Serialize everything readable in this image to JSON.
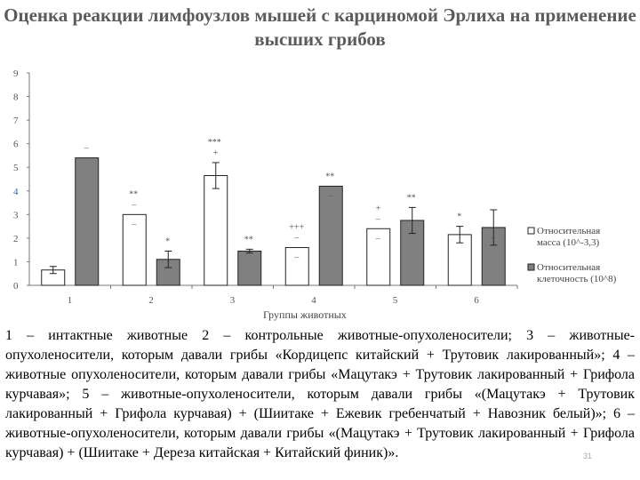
{
  "title": "Оценка реакции лимфоузлов мышей с карциномой Эрлиха на применение высших грибов",
  "description": "1 – интактные животные 2 – контрольные животные-опухоленосители; 3 – животные-опухоленосители, которым давали грибы «Кордицепс китайский + Трутовик лакированный»; 4 – животные опухоленосители, которым давали грибы «Мацутакэ + Трутовик лакированный + Грифола курчавая»; 5 – животные-опухоленосители, которым давали грибы «(Мацутакэ + Трутовик лакированный + Грифола курчавая) + (Шиитаке + Ежевик гребенчатый + Навозник белый)»; 6 – животные-опухоленосители, которым давали грибы «(Мацутакэ + Трутовик лакированный + Грифола курчавая) + (Шиитаке + Дереза китайская + Китайский финик)».",
  "page_number": "31",
  "chart_data": {
    "type": "bar",
    "xlabel": "Группы животных",
    "ylabel": "",
    "ylim": [
      0,
      9
    ],
    "yticks": [
      "0",
      "1",
      "2",
      "3",
      "4",
      "5",
      "6",
      "7",
      "8",
      "9"
    ],
    "categories": [
      "1",
      "2",
      "3",
      "4",
      "5",
      "6"
    ],
    "series": [
      {
        "name": "Относительная масса (10^-3,3)",
        "fill": "#ffffff",
        "values": [
          0.65,
          3.0,
          4.65,
          1.6,
          2.4,
          2.15
        ],
        "errors": [
          0.15,
          0,
          0.55,
          0,
          0,
          0.35
        ],
        "labels": [
          "",
          "**\n–",
          "***\n+",
          "+++\n–",
          "+\n–",
          "*"
        ],
        "below_labels": [
          "",
          "–",
          "",
          "–",
          "–",
          ""
        ]
      },
      {
        "name": "Относительная клеточность (10^8)",
        "fill": "#808080",
        "values": [
          5.4,
          1.1,
          1.45,
          4.2,
          2.75,
          2.45
        ],
        "errors": [
          0,
          0.35,
          0.08,
          0,
          0.55,
          0.75
        ],
        "labels": [
          "–",
          "*",
          "**",
          "**",
          "**",
          ""
        ],
        "below_labels": [
          "",
          "",
          "",
          "–",
          "",
          "–"
        ]
      }
    ],
    "legend_position": "right",
    "tick_colors": {
      "4": "#3a5fa8"
    }
  }
}
